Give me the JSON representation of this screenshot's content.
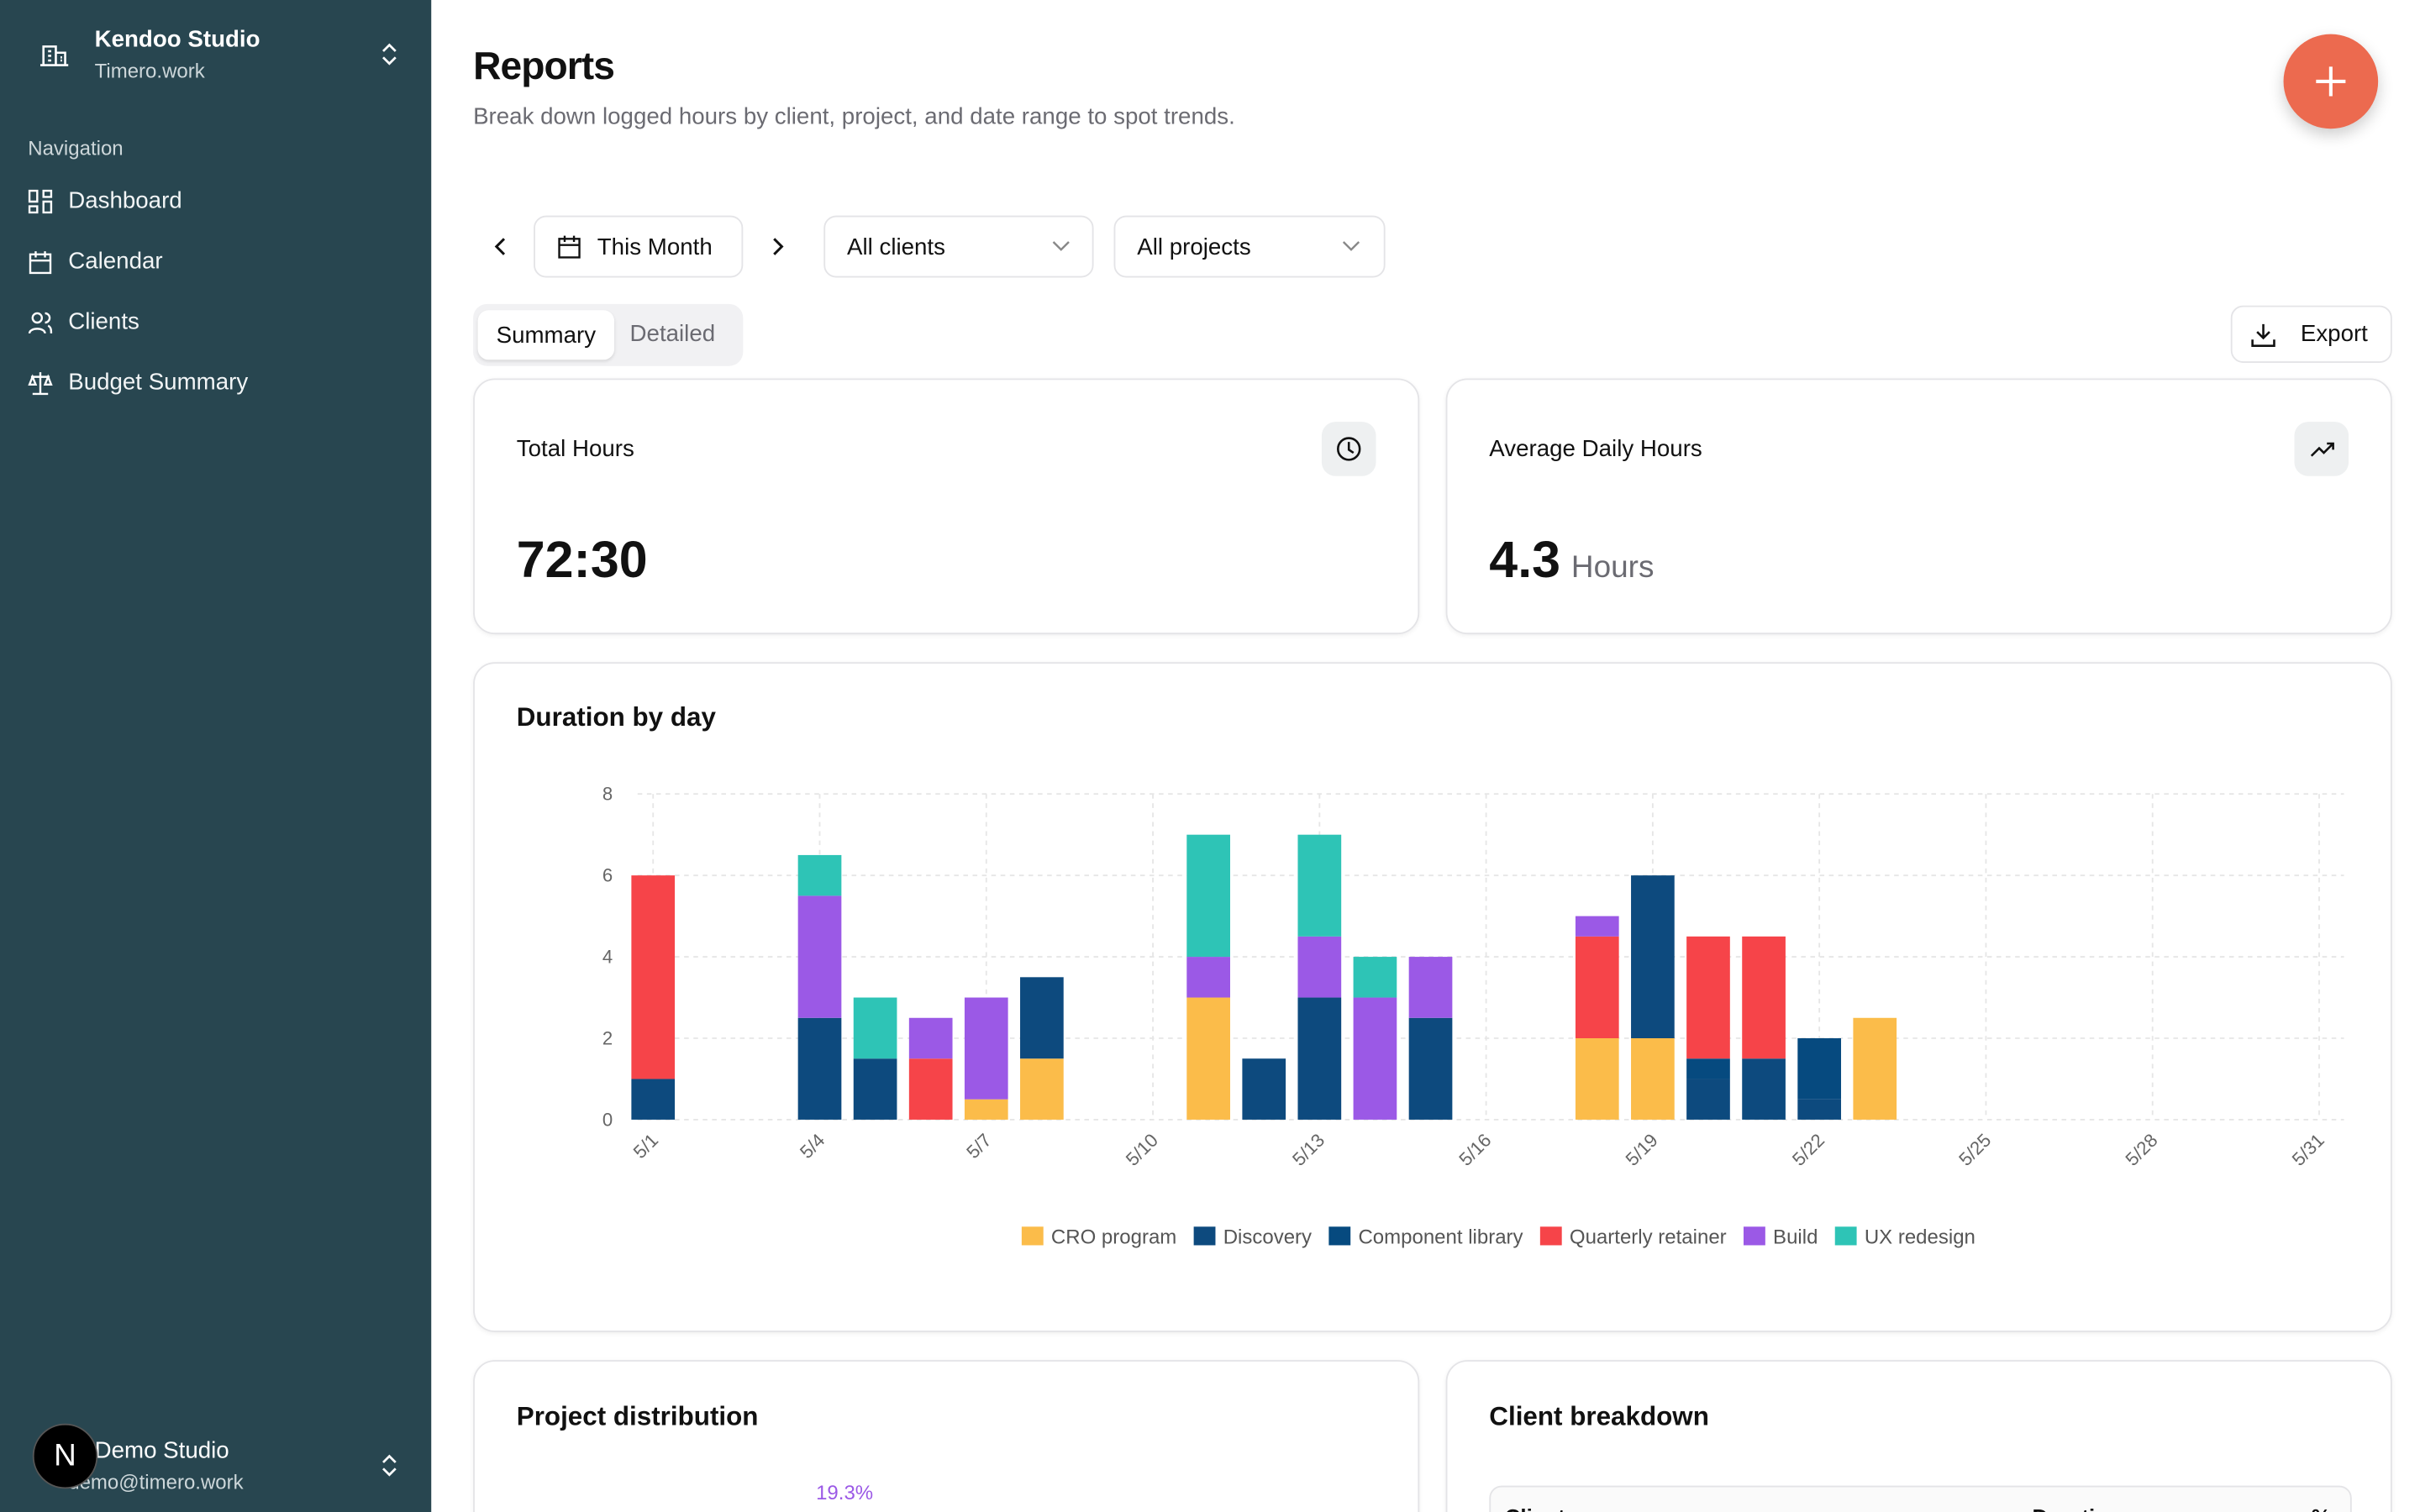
{
  "sidebar": {
    "workspace": {
      "name": "Kendoo Studio",
      "domain": "Timero.work"
    },
    "nav_heading": "Navigation",
    "nav_items": [
      "Dashboard",
      "Calendar",
      "Clients",
      "Budget Summary"
    ],
    "user": {
      "name": "Demo Studio",
      "email": "demo@timero.work",
      "avatar": "N"
    }
  },
  "header": {
    "title": "Reports",
    "subtitle": "Break down logged hours by client, project, and date range to spot trends."
  },
  "filters": {
    "period": "This Month",
    "clients": "All clients",
    "projects": "All projects"
  },
  "tabs": [
    "Summary",
    "Detailed"
  ],
  "export": "Export",
  "stats": [
    {
      "label": "Total Hours",
      "value": "72:30"
    },
    {
      "label": "Average Daily Hours",
      "value": "4.3",
      "unit": "Hours"
    }
  ],
  "chart_data": {
    "type": "bar",
    "stacked": true,
    "title": "Duration by day",
    "categories": [
      "5/1",
      null,
      null,
      "5/4",
      null,
      null,
      "5/7",
      null,
      null,
      "5/10",
      null,
      null,
      "5/13",
      null,
      null,
      "5/16",
      null,
      null,
      "5/19",
      null,
      null,
      "5/22",
      null,
      null,
      "5/25",
      null,
      null,
      "5/28",
      null,
      null,
      "5/31"
    ],
    "series": [
      {
        "name": "CRO program",
        "color": "#fbbc4a",
        "values": [
          null,
          null,
          null,
          null,
          null,
          null,
          0.5,
          1.5,
          null,
          null,
          3,
          null,
          null,
          null,
          null,
          null,
          null,
          2,
          2,
          null,
          null,
          null,
          2.5,
          null,
          null,
          null,
          null,
          null,
          null,
          null,
          null
        ]
      },
      {
        "name": "Discovery",
        "color": "#0d4a7e",
        "values": [
          1,
          null,
          null,
          2.5,
          1.5,
          null,
          null,
          2,
          null,
          null,
          null,
          1.5,
          3,
          null,
          2.5,
          null,
          null,
          null,
          4,
          1,
          1.5,
          0.5,
          null,
          null,
          null,
          null,
          null,
          null,
          null,
          null,
          null
        ]
      },
      {
        "name": "Component library",
        "color": "#064a7f",
        "values": [
          null,
          null,
          null,
          null,
          null,
          null,
          null,
          null,
          null,
          null,
          null,
          null,
          null,
          null,
          null,
          null,
          null,
          null,
          null,
          0.5,
          null,
          1.5,
          null,
          null,
          null,
          null,
          null,
          null,
          null,
          null,
          null
        ]
      },
      {
        "name": "Quarterly retainer",
        "color": "#f64449",
        "values": [
          5,
          null,
          null,
          null,
          null,
          1.5,
          null,
          null,
          null,
          null,
          null,
          null,
          null,
          null,
          null,
          null,
          null,
          2.5,
          null,
          3,
          3,
          null,
          null,
          null,
          null,
          null,
          null,
          null,
          null,
          null,
          null
        ]
      },
      {
        "name": "Build",
        "color": "#9b59e6",
        "values": [
          null,
          null,
          null,
          3,
          null,
          1,
          2.5,
          null,
          null,
          null,
          1,
          null,
          1.5,
          3,
          1.5,
          null,
          null,
          0.5,
          null,
          null,
          null,
          null,
          null,
          null,
          null,
          null,
          null,
          null,
          null,
          null,
          null
        ]
      },
      {
        "name": "UX redesign",
        "color": "#2ec4b6",
        "values": [
          null,
          null,
          null,
          1,
          1.5,
          null,
          null,
          null,
          null,
          null,
          3,
          null,
          2.5,
          1,
          null,
          null,
          null,
          null,
          null,
          null,
          null,
          null,
          null,
          null,
          null,
          null,
          null,
          null,
          null,
          null,
          null
        ]
      }
    ],
    "ylim": [
      0,
      8
    ],
    "yticks": [
      0,
      2,
      4,
      6,
      8
    ],
    "grid": true,
    "legend": "bottom"
  },
  "project_distribution": {
    "title": "Project distribution",
    "labels": [
      "19.3%"
    ]
  },
  "client_breakdown": {
    "title": "Client breakdown",
    "columns": [
      "Client",
      "Duration",
      "%"
    ]
  }
}
